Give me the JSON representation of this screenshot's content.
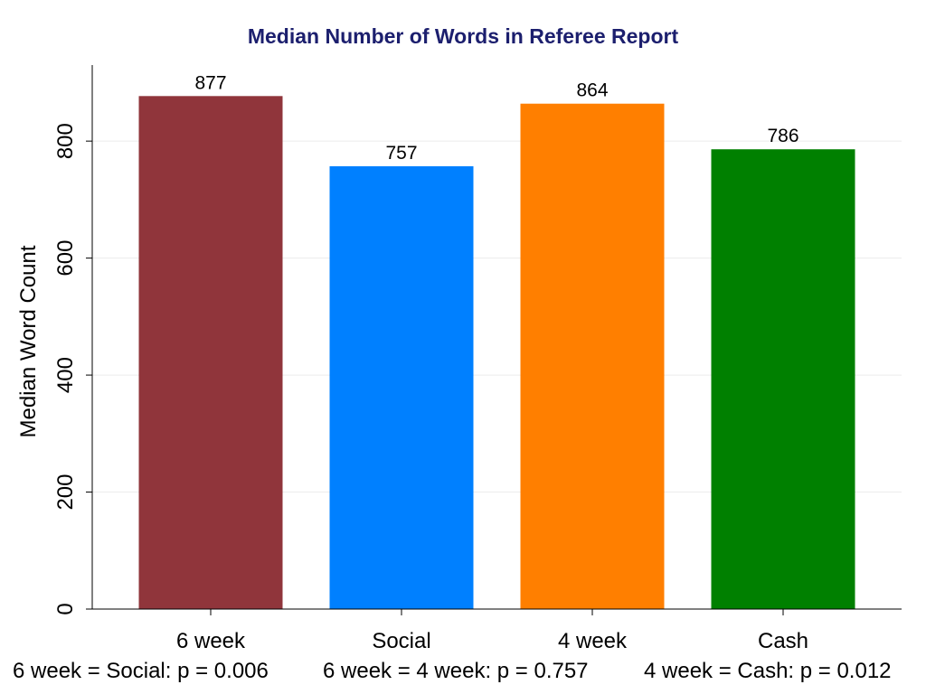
{
  "chart_data": {
    "type": "bar",
    "title": "Median Number of Words in Referee Report",
    "ylabel": "Median Word Count",
    "xlabel": "",
    "categories": [
      "6 week",
      "Social",
      "4 week",
      "Cash"
    ],
    "values": [
      877,
      757,
      864,
      786
    ],
    "data_labels": [
      "877",
      "757",
      "864",
      "786"
    ],
    "colors": [
      "#90353b",
      "#0080ff",
      "#ff7f00",
      "#008000"
    ],
    "ylim": [
      0,
      930
    ],
    "yticks": [
      0,
      200,
      400,
      600,
      800
    ],
    "grid": true,
    "legend": "none",
    "annotations": [
      "6 week = Social: p = 0.006",
      "6 week = 4 week: p = 0.757",
      "4 week = Cash: p = 0.012"
    ]
  }
}
